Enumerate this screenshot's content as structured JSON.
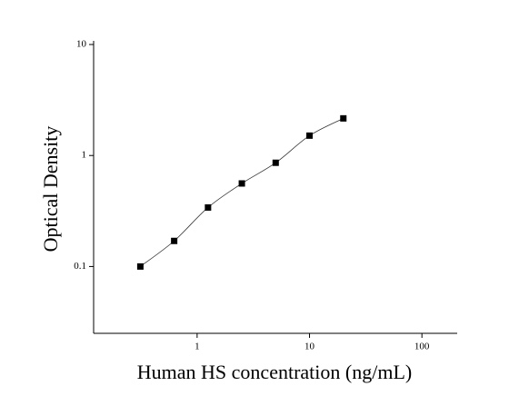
{
  "chart_data": {
    "type": "scatter",
    "x_label": "Human HS concentration (ng/mL)",
    "y_label": "Optical Density",
    "xscale": "log",
    "yscale": "log",
    "xlim": [
      0.12,
      206
    ],
    "ylim": [
      0.025,
      10
    ],
    "xticks": [
      1,
      10,
      100
    ],
    "yticks": [
      0.1,
      1,
      10
    ],
    "fit_curve": true,
    "series": [
      {
        "color": "#000000",
        "x": [
          0.3125,
          0.625,
          1.25,
          2.5,
          5,
          10,
          20
        ],
        "values": [
          0.1,
          0.17,
          0.34,
          0.56,
          0.86,
          1.51,
          2.16
        ]
      }
    ]
  }
}
